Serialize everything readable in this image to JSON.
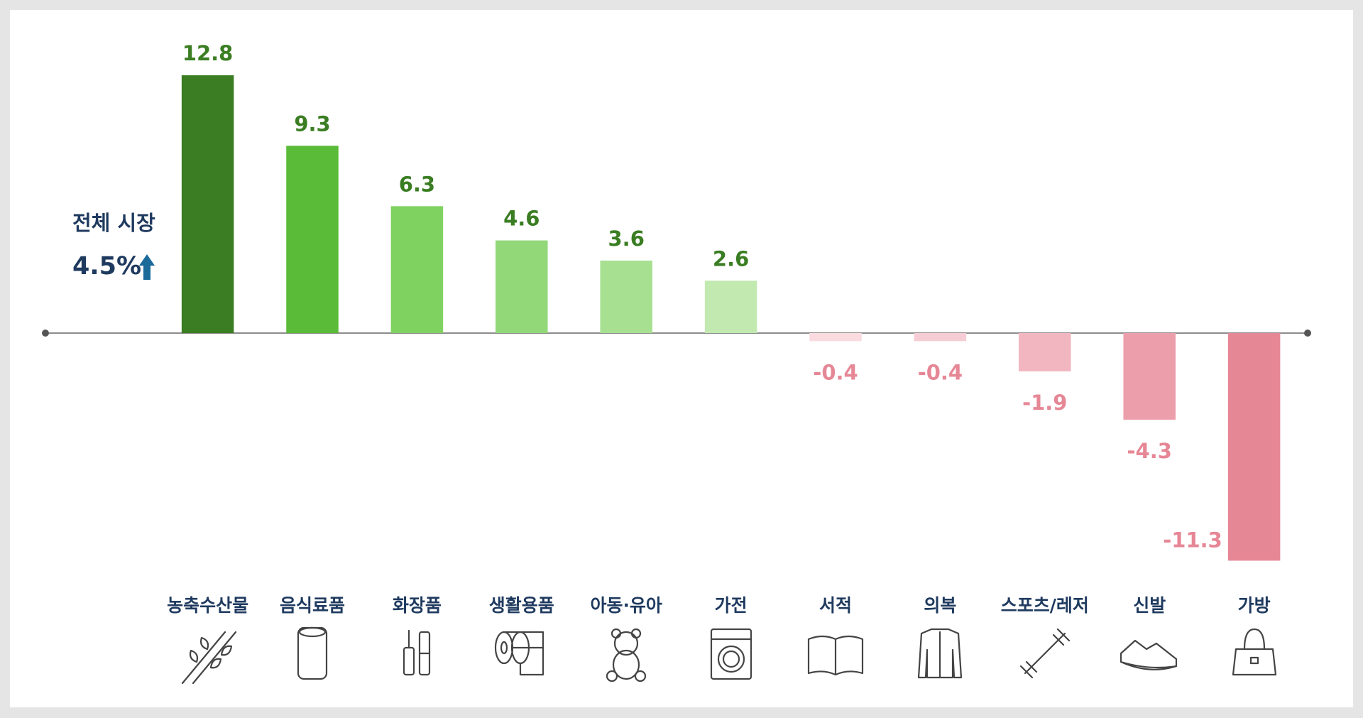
{
  "chart_data": {
    "type": "bar",
    "categories": [
      "농축수산물",
      "음식료품",
      "화장품",
      "생활용품",
      "아동·유아",
      "가전",
      "서적",
      "의복",
      "스포츠/레저",
      "신발",
      "가방"
    ],
    "values": [
      12.8,
      9.3,
      6.3,
      4.6,
      3.6,
      2.6,
      -0.4,
      -0.4,
      -1.9,
      -4.3,
      -11.3
    ],
    "colors": [
      "#3a7d22",
      "#59bb37",
      "#80d260",
      "#92d878",
      "#a8e091",
      "#c1e9b0",
      "#f9dbe0",
      "#f6cdd4",
      "#f2b6c0",
      "#ec9eab",
      "#e68796"
    ],
    "positive_label_color": "#3a7d22",
    "negative_label_color": "#e68796",
    "annotation": "전체 시장",
    "annotation_value": "4.5%"
  }
}
